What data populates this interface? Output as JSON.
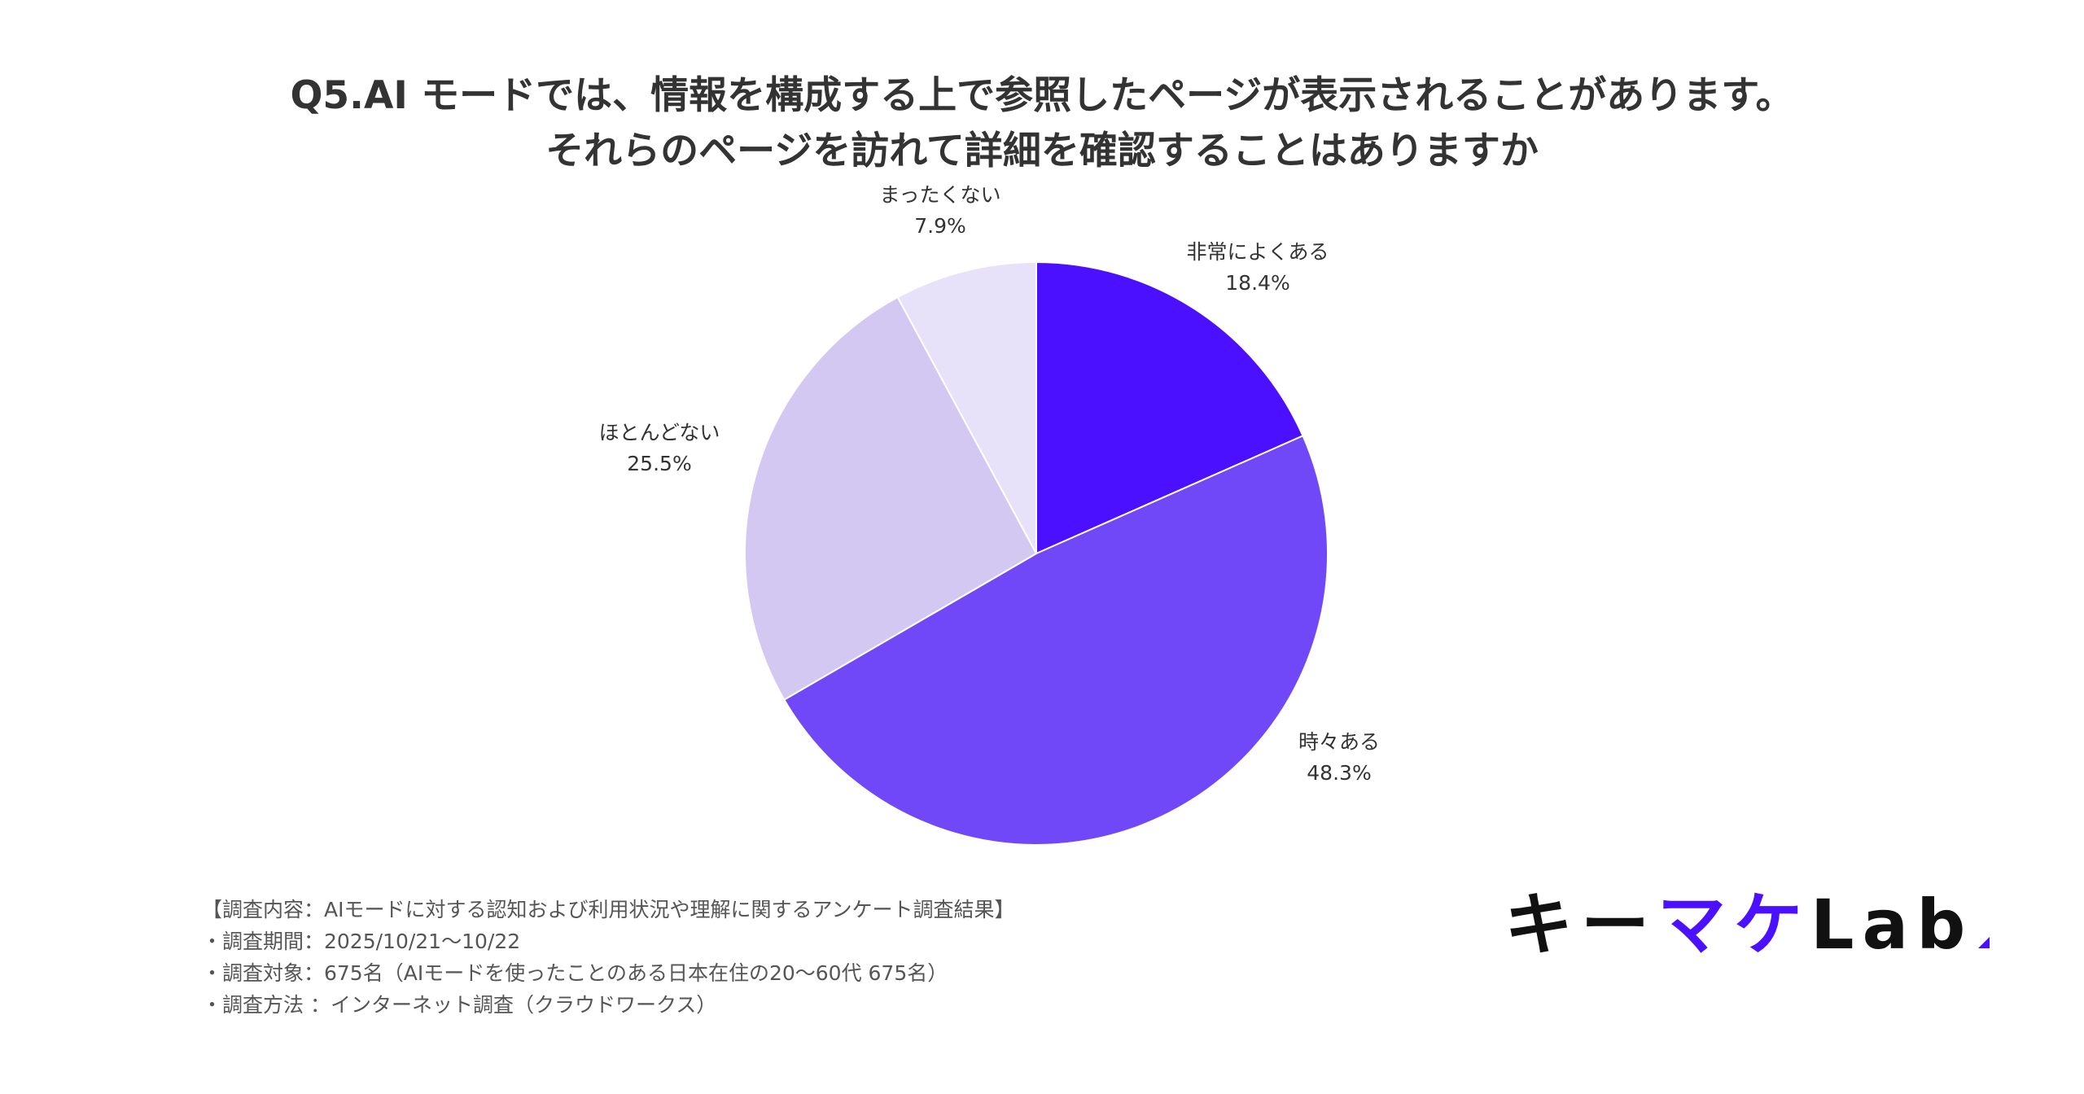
{
  "title": {
    "line1": "Q5.AI モードでは、情報を構成する上で参照したページが表示されることがあります。",
    "line2": "それらのページを訪れて詳細を確認することはありますか"
  },
  "chart_data": {
    "type": "pie",
    "title": "Q5.AI モードでは、情報を構成する上で参照したページが表示されることがあります。それらのページを訪れて詳細を確認することはありますか",
    "start": "top",
    "direction": "clockwise",
    "slices": [
      {
        "label": "非常によくある",
        "value": 18.4,
        "value_label": "18.4%",
        "color": "#4b10ff"
      },
      {
        "label": "時々ある",
        "value": 48.3,
        "value_label": "48.3%",
        "color": "#7148f7"
      },
      {
        "label": "ほとんどない",
        "value": 25.5,
        "value_label": "25.5%",
        "color": "#d3c8f1"
      },
      {
        "label": "まったくない",
        "value": 7.9,
        "value_label": "7.9%",
        "color": "#e7e1fa"
      }
    ]
  },
  "footnote": {
    "line1": "【調査内容：AIモードに対する認知および利用状況や理解に関するアンケート調査結果】",
    "line2": "・調査期間：2025/10/21〜10/22",
    "line3": "・調査対象：675名（AIモードを使ったことのある日本在住の20〜60代 675名）",
    "line4": "・調査方法 ：インターネット調査（クラウドワークス）"
  },
  "logo": {
    "part_a": "キー",
    "part_b": "マケ",
    "part_c": "Lab"
  }
}
